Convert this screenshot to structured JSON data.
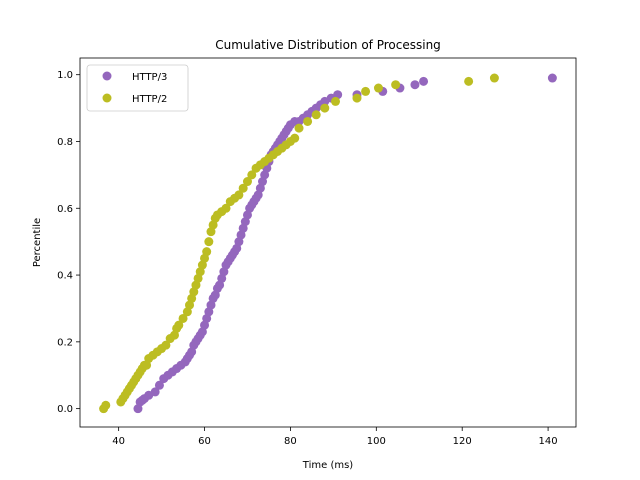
{
  "chart_data": {
    "type": "scatter",
    "title": "Cumulative Distribution of Processing",
    "xlabel": "Time (ms)",
    "ylabel": "Percentile",
    "xlim": [
      31,
      146.5
    ],
    "ylim": [
      -0.055,
      1.05
    ],
    "x_ticks": [
      40,
      60,
      80,
      100,
      120,
      140
    ],
    "y_ticks": [
      0.0,
      0.2,
      0.4,
      0.6,
      0.8,
      1.0
    ],
    "x_tick_labels": [
      "40",
      "60",
      "80",
      "100",
      "120",
      "140"
    ],
    "y_tick_labels": [
      "0.0",
      "0.2",
      "0.4",
      "0.6",
      "0.8",
      "1.0"
    ],
    "grid": false,
    "legend_position": "upper-left",
    "series": [
      {
        "name": "HTTP/3",
        "color": "#9467bd",
        "x": [
          44.5,
          45.0,
          45.5,
          46.0,
          47.0,
          48.5,
          49.5,
          50.5,
          51.5,
          52.5,
          53.5,
          54.5,
          55.5,
          56.0,
          56.5,
          57.0,
          57.5,
          58.0,
          58.5,
          59.0,
          59.5,
          60.0,
          60.5,
          61.0,
          61.5,
          62.0,
          62.5,
          63.0,
          63.5,
          64.0,
          64.5,
          65.0,
          65.5,
          66.0,
          66.5,
          67.0,
          67.5,
          68.0,
          68.5,
          69.0,
          69.5,
          70.0,
          70.5,
          71.0,
          71.5,
          72.0,
          72.5,
          73.0,
          73.5,
          74.0,
          74.5,
          75.0,
          75.5,
          76.0,
          76.5,
          77.0,
          77.5,
          78.0,
          78.5,
          79.0,
          79.5,
          80.0,
          81.0,
          82.0,
          83.0,
          84.0,
          85.0,
          86.0,
          87.0,
          88.0,
          89.5,
          91.0,
          95.5,
          101.5,
          105.5,
          109.0,
          111.0,
          141.0
        ],
        "y": [
          0.0,
          0.02,
          0.025,
          0.03,
          0.04,
          0.05,
          0.07,
          0.09,
          0.1,
          0.11,
          0.12,
          0.13,
          0.14,
          0.15,
          0.16,
          0.17,
          0.19,
          0.2,
          0.21,
          0.22,
          0.23,
          0.25,
          0.27,
          0.29,
          0.31,
          0.33,
          0.34,
          0.36,
          0.37,
          0.39,
          0.41,
          0.43,
          0.44,
          0.45,
          0.46,
          0.47,
          0.48,
          0.5,
          0.52,
          0.54,
          0.56,
          0.58,
          0.6,
          0.61,
          0.62,
          0.63,
          0.64,
          0.66,
          0.68,
          0.7,
          0.72,
          0.74,
          0.76,
          0.77,
          0.78,
          0.79,
          0.8,
          0.81,
          0.82,
          0.83,
          0.84,
          0.85,
          0.86,
          0.86,
          0.87,
          0.88,
          0.89,
          0.9,
          0.91,
          0.92,
          0.93,
          0.94,
          0.94,
          0.95,
          0.96,
          0.97,
          0.98,
          0.99
        ]
      },
      {
        "name": "HTTP/2",
        "color": "#bcbd22",
        "x": [
          36.5,
          37.0,
          40.5,
          41.0,
          41.5,
          42.0,
          42.5,
          43.0,
          43.5,
          44.0,
          44.5,
          45.0,
          45.5,
          46.0,
          46.5,
          47.0,
          48.0,
          49.0,
          50.0,
          51.0,
          52.0,
          53.0,
          53.5,
          54.0,
          55.0,
          56.0,
          56.5,
          57.0,
          57.5,
          58.0,
          58.5,
          59.0,
          59.5,
          60.0,
          60.5,
          61.0,
          61.5,
          62.0,
          62.5,
          63.0,
          64.0,
          65.0,
          66.0,
          67.0,
          68.0,
          69.0,
          70.0,
          71.0,
          72.0,
          73.0,
          74.0,
          75.0,
          76.0,
          77.0,
          78.0,
          79.0,
          80.0,
          81.0,
          82.0,
          84.0,
          86.0,
          88.0,
          90.5,
          95.5,
          97.5,
          100.5,
          104.5,
          121.5,
          127.5
        ],
        "y": [
          0.0,
          0.01,
          0.02,
          0.03,
          0.04,
          0.05,
          0.06,
          0.07,
          0.08,
          0.09,
          0.1,
          0.11,
          0.12,
          0.13,
          0.13,
          0.15,
          0.16,
          0.17,
          0.18,
          0.19,
          0.21,
          0.22,
          0.24,
          0.25,
          0.27,
          0.29,
          0.31,
          0.33,
          0.35,
          0.37,
          0.39,
          0.41,
          0.43,
          0.45,
          0.47,
          0.5,
          0.53,
          0.55,
          0.57,
          0.58,
          0.59,
          0.6,
          0.62,
          0.63,
          0.64,
          0.66,
          0.68,
          0.7,
          0.72,
          0.73,
          0.74,
          0.75,
          0.76,
          0.77,
          0.78,
          0.79,
          0.8,
          0.81,
          0.84,
          0.86,
          0.88,
          0.9,
          0.92,
          0.93,
          0.95,
          0.96,
          0.97,
          0.98,
          0.99
        ]
      }
    ]
  }
}
